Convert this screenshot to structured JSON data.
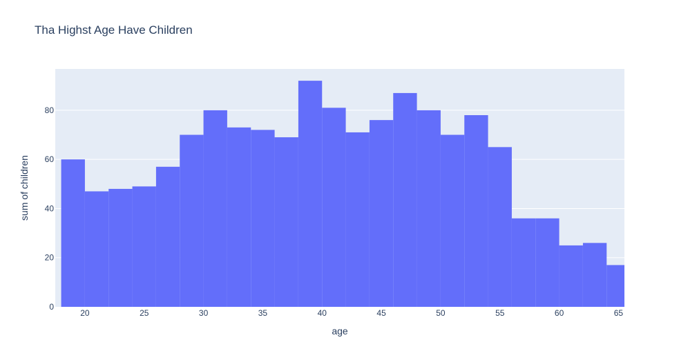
{
  "chart_data": {
    "type": "bar",
    "title": "Tha Highst Age Have Children",
    "xlabel": "age",
    "ylabel": "sum of children",
    "bins": [
      {
        "start": 18,
        "end": 20,
        "value": 60
      },
      {
        "start": 20,
        "end": 22,
        "value": 47
      },
      {
        "start": 22,
        "end": 24,
        "value": 48
      },
      {
        "start": 24,
        "end": 26,
        "value": 49
      },
      {
        "start": 26,
        "end": 28,
        "value": 57
      },
      {
        "start": 28,
        "end": 30,
        "value": 70
      },
      {
        "start": 30,
        "end": 32,
        "value": 80
      },
      {
        "start": 32,
        "end": 34,
        "value": 73
      },
      {
        "start": 34,
        "end": 36,
        "value": 72
      },
      {
        "start": 36,
        "end": 38,
        "value": 69
      },
      {
        "start": 38,
        "end": 40,
        "value": 92
      },
      {
        "start": 40,
        "end": 42,
        "value": 81
      },
      {
        "start": 42,
        "end": 44,
        "value": 71
      },
      {
        "start": 44,
        "end": 46,
        "value": 76
      },
      {
        "start": 46,
        "end": 48,
        "value": 87
      },
      {
        "start": 48,
        "end": 50,
        "value": 80
      },
      {
        "start": 50,
        "end": 52,
        "value": 70
      },
      {
        "start": 52,
        "end": 54,
        "value": 78
      },
      {
        "start": 54,
        "end": 56,
        "value": 65
      },
      {
        "start": 56,
        "end": 58,
        "value": 36
      },
      {
        "start": 58,
        "end": 60,
        "value": 36
      },
      {
        "start": 60,
        "end": 62,
        "value": 25
      },
      {
        "start": 62,
        "end": 64,
        "value": 26
      },
      {
        "start": 64,
        "end": 66,
        "value": 17
      }
    ],
    "xlim": [
      17.5,
      65.5
    ],
    "ylim": [
      0,
      96.8
    ],
    "xticks": [
      20,
      25,
      30,
      35,
      40,
      45,
      50,
      55,
      60,
      65
    ],
    "yticks": [
      0,
      20,
      40,
      60,
      80
    ],
    "grid": true,
    "colors": {
      "bar": "#636efa",
      "plot_bg": "#e5ecf6",
      "grid": "#ffffff",
      "text": "#2a3f5f"
    }
  }
}
